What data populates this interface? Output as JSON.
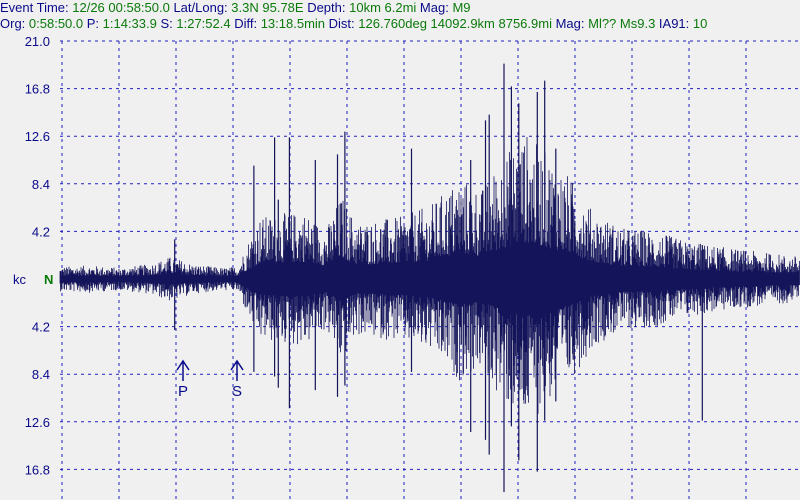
{
  "header": {
    "line1": [
      {
        "t": "Event Time: ",
        "k": "lbl"
      },
      {
        "t": "12/26 00:58:50.0",
        "k": "val"
      },
      {
        "t": " Lat/Long: ",
        "k": "lbl"
      },
      {
        "t": "3.3N 95.78E",
        "k": "val"
      },
      {
        "t": " Depth: ",
        "k": "lbl"
      },
      {
        "t": "10km 6.2mi",
        "k": "val"
      },
      {
        "t": " Mag: ",
        "k": "lbl"
      },
      {
        "t": "M9",
        "k": "val"
      }
    ],
    "line2": [
      {
        "t": "Org: ",
        "k": "lbl"
      },
      {
        "t": "0:58:50.0",
        "k": "val"
      },
      {
        "t": " P: ",
        "k": "lbl"
      },
      {
        "t": "1:14:33.9",
        "k": "val"
      },
      {
        "t": " S: ",
        "k": "lbl"
      },
      {
        "t": "1:27:52.4",
        "k": "val"
      },
      {
        "t": " Diff: ",
        "k": "lbl"
      },
      {
        "t": "13:18.5min",
        "k": "val"
      },
      {
        "t": " Dist: ",
        "k": "lbl"
      },
      {
        "t": "126.760deg 14092.9km 8756.9mi",
        "k": "val"
      },
      {
        "t": "  Mag: ",
        "k": "lbl"
      },
      {
        "t": "Ml?? Ms9.3",
        "k": "val"
      },
      {
        "t": " IA91: ",
        "k": "lbl"
      },
      {
        "t": "10",
        "k": "val"
      }
    ]
  },
  "colors": {
    "trace": "#14145a",
    "grid": "#2020c0",
    "label": "#0a0a8a",
    "channel": "#0a7a0a",
    "background": "#f0f0f0"
  },
  "chart_data": {
    "type": "line",
    "yunit": "kc",
    "channel": "N",
    "ytick_labels": [
      "21.0",
      "16.8",
      "12.6",
      "8.4",
      "4.2",
      "",
      "4.2",
      "8.4",
      "12.6",
      "16.8"
    ],
    "ylim": [
      -21.0,
      21.0
    ],
    "grid": true,
    "phase_markers": [
      {
        "label": "P"
      },
      {
        "label": "S"
      }
    ],
    "series": [
      {
        "envelope": [
          [
            0,
            1.1
          ],
          [
            0.04,
            1.2
          ],
          [
            0.08,
            1.0
          ],
          [
            0.12,
            1.3
          ],
          [
            0.15,
            2.0
          ],
          [
            0.18,
            1.3
          ],
          [
            0.22,
            1.0
          ],
          [
            0.24,
            1.1
          ],
          [
            0.255,
            3.5
          ],
          [
            0.27,
            5.5
          ],
          [
            0.3,
            5.8
          ],
          [
            0.33,
            6.0
          ],
          [
            0.36,
            4.5
          ],
          [
            0.38,
            7.5
          ],
          [
            0.4,
            5.0
          ],
          [
            0.43,
            5.3
          ],
          [
            0.46,
            5.5
          ],
          [
            0.5,
            6.5
          ],
          [
            0.54,
            9.0
          ],
          [
            0.57,
            8.0
          ],
          [
            0.6,
            11.0
          ],
          [
            0.63,
            13.0
          ],
          [
            0.66,
            11.0
          ],
          [
            0.69,
            9.0
          ],
          [
            0.72,
            6.0
          ],
          [
            0.76,
            4.5
          ],
          [
            0.8,
            4.3
          ],
          [
            0.84,
            3.5
          ],
          [
            0.88,
            3.0
          ],
          [
            0.92,
            2.6
          ],
          [
            0.96,
            2.3
          ],
          [
            1.0,
            2.0
          ]
        ],
        "spikes": [
          {
            "x": 0.155,
            "pos": 3.5,
            "neg": 4.5
          },
          {
            "x": 0.262,
            "pos": 10.0,
            "neg": 8.2
          },
          {
            "x": 0.29,
            "pos": 12.5,
            "neg": 8.6
          },
          {
            "x": 0.295,
            "pos": 7.0,
            "neg": 9.6
          },
          {
            "x": 0.31,
            "pos": 12.5,
            "neg": 11.4
          },
          {
            "x": 0.345,
            "pos": 10.5,
            "neg": 9.8
          },
          {
            "x": 0.375,
            "pos": 11.0,
            "neg": 10.4
          },
          {
            "x": 0.385,
            "pos": 13.0,
            "neg": 9.4
          },
          {
            "x": 0.475,
            "pos": 11.5,
            "neg": 8.2
          },
          {
            "x": 0.555,
            "pos": 10.5,
            "neg": 13.5
          },
          {
            "x": 0.575,
            "pos": 14.0,
            "neg": 14.2
          },
          {
            "x": 0.58,
            "pos": 14.5,
            "neg": 15.5
          },
          {
            "x": 0.6,
            "pos": 19.0,
            "neg": 18.8
          },
          {
            "x": 0.61,
            "pos": 17.0,
            "neg": 13.0
          },
          {
            "x": 0.62,
            "pos": 15.5,
            "neg": 16.0
          },
          {
            "x": 0.645,
            "pos": 16.5,
            "neg": 17.0
          },
          {
            "x": 0.655,
            "pos": 17.5,
            "neg": 12.5
          },
          {
            "x": 0.67,
            "pos": 11.5,
            "neg": 10.8
          },
          {
            "x": 0.868,
            "pos": 3.0,
            "neg": 12.5
          }
        ]
      }
    ]
  }
}
